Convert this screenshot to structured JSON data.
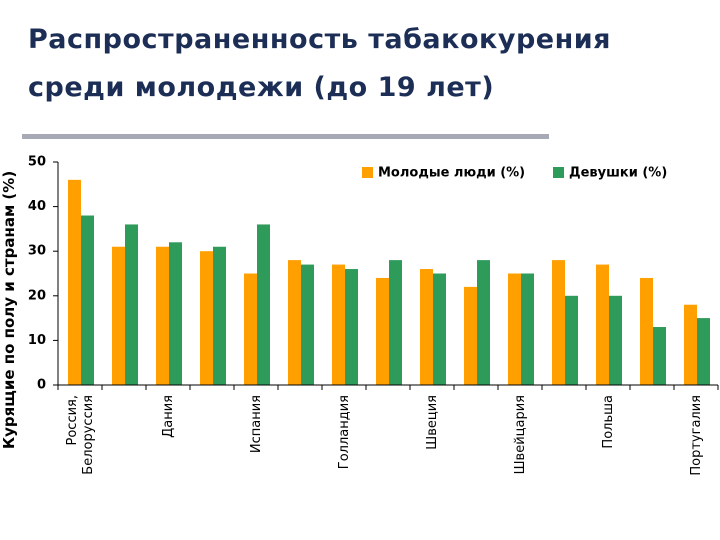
{
  "title_lines": [
    "Распространенность табакокурения",
    "среди молодежи (до 19 лет)"
  ],
  "colors": {
    "title": "#1c2e55",
    "series_1": "#ff9f00",
    "series_2": "#2e9b5a",
    "axis": "#000000",
    "rule": "#a7aab4"
  },
  "chart_data": {
    "type": "bar",
    "title": "Распространенность табакокурения среди молодежи (до 19 лет)",
    "ylabel": "Курящие по полу и странам (%)",
    "xlabel": "",
    "ylim": [
      0,
      50
    ],
    "yticks": [
      0,
      10,
      20,
      30,
      40,
      50
    ],
    "grid": false,
    "legend_position": "top-right",
    "categories": [
      "Россия, Белоруссия",
      "",
      "Дания",
      "",
      "Испания",
      "",
      "Голландия",
      "",
      "Швеция",
      "",
      "Швейцария",
      "",
      "Польша",
      "",
      "Португалия"
    ],
    "series": [
      {
        "name": "Молодые люди (%)",
        "color": "#ff9f00",
        "values": [
          46,
          31,
          31,
          30,
          25,
          28,
          27,
          24,
          26,
          22,
          25,
          28,
          27,
          24,
          18
        ]
      },
      {
        "name": "Девушки (%)",
        "color": "#2e9b5a",
        "values": [
          38,
          36,
          32,
          31,
          36,
          27,
          26,
          28,
          25,
          28,
          25,
          20,
          20,
          13,
          15
        ]
      }
    ]
  }
}
